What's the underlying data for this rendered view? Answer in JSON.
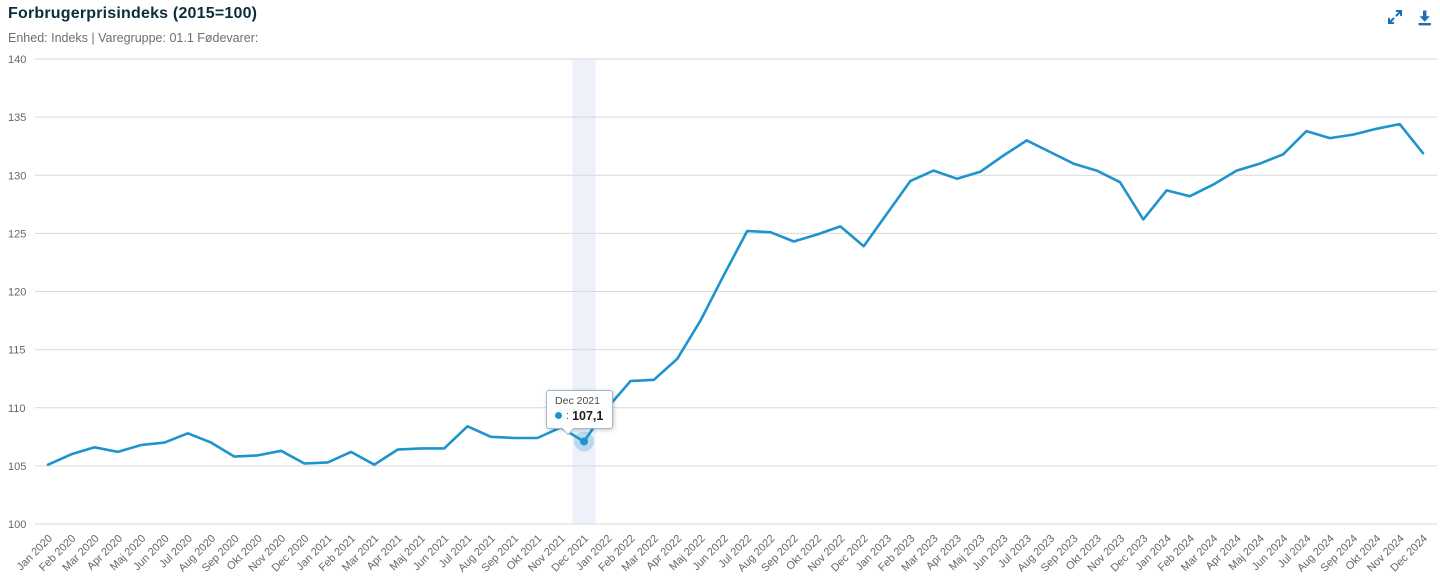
{
  "header": {
    "title": "Forbrugerprisindeks (2015=100)",
    "subtitle": "Enhed: Indeks | Varegruppe: 01.1 Fødevarer:"
  },
  "icons": {
    "expand": "expand-icon",
    "download": "download-icon"
  },
  "colors": {
    "line": "#1e94cd",
    "halo": "rgba(30,148,205,0.25)",
    "hover_band": "#edf2fa",
    "grid": "#d9d9d9",
    "axis_text": "#666666",
    "title_text": "#0c2e3c",
    "icon_blue": "#1a6fb5"
  },
  "tooltip": {
    "date": "Dec 2021",
    "separator": ":",
    "value": "107,1"
  },
  "chart_data": {
    "type": "line",
    "title": "Forbrugerprisindeks (2015=100)",
    "xlabel": "",
    "ylabel": "",
    "ylim": [
      100,
      140
    ],
    "yticks": [
      100,
      105,
      110,
      115,
      120,
      125,
      130,
      135,
      140
    ],
    "grid": true,
    "legend": "none",
    "x_label_rotation": -45,
    "categories": [
      "Jan 2020",
      "Feb 2020",
      "Mar 2020",
      "Apr 2020",
      "Maj 2020",
      "Jun 2020",
      "Jul 2020",
      "Aug 2020",
      "Sep 2020",
      "Okt 2020",
      "Nov 2020",
      "Dec 2020",
      "Jan 2021",
      "Feb 2021",
      "Mar 2021",
      "Apr 2021",
      "Maj 2021",
      "Jun 2021",
      "Jul 2021",
      "Aug 2021",
      "Sep 2021",
      "Okt 2021",
      "Nov 2021",
      "Dec 2021",
      "Jan 2022",
      "Feb 2022",
      "Mar 2022",
      "Apr 2022",
      "Maj 2022",
      "Jun 2022",
      "Jul 2022",
      "Aug 2022",
      "Sep 2022",
      "Okt 2022",
      "Nov 2022",
      "Dec 2022",
      "Jan 2023",
      "Feb 2023",
      "Mar 2023",
      "Apr 2023",
      "Maj 2023",
      "Jun 2023",
      "Jul 2023",
      "Aug 2023",
      "Sep 2023",
      "Okt 2023",
      "Nov 2023",
      "Dec 2023",
      "Jan 2024",
      "Feb 2024",
      "Mar 2024",
      "Apr 2024",
      "Maj 2024",
      "Jun 2024",
      "Jul 2024",
      "Aug 2024",
      "Sep 2024",
      "Okt 2024",
      "Nov 2024",
      "Dec 2024"
    ],
    "series": [
      {
        "name": "Forbrugerprisindeks",
        "values": [
          105.1,
          106.0,
          106.6,
          106.2,
          106.8,
          107.0,
          107.8,
          107.0,
          105.8,
          105.9,
          106.3,
          105.2,
          105.3,
          106.2,
          105.1,
          106.4,
          106.5,
          106.5,
          108.4,
          107.5,
          107.4,
          107.4,
          108.3,
          107.1,
          110.0,
          112.3,
          112.4,
          114.2,
          117.5,
          121.4,
          125.2,
          125.1,
          124.3,
          124.9,
          125.6,
          123.9,
          126.7,
          129.5,
          130.4,
          129.7,
          130.3,
          131.7,
          133.0,
          132.0,
          131.0,
          130.4,
          129.4,
          126.2,
          128.7,
          128.2,
          129.2,
          130.4,
          131.0,
          131.8,
          133.8,
          133.2,
          133.5,
          134.0,
          134.4,
          131.9
        ]
      }
    ],
    "hover": {
      "index": 23,
      "label": "Dec 2021",
      "value_display": "107,1",
      "value": 107.1
    }
  }
}
